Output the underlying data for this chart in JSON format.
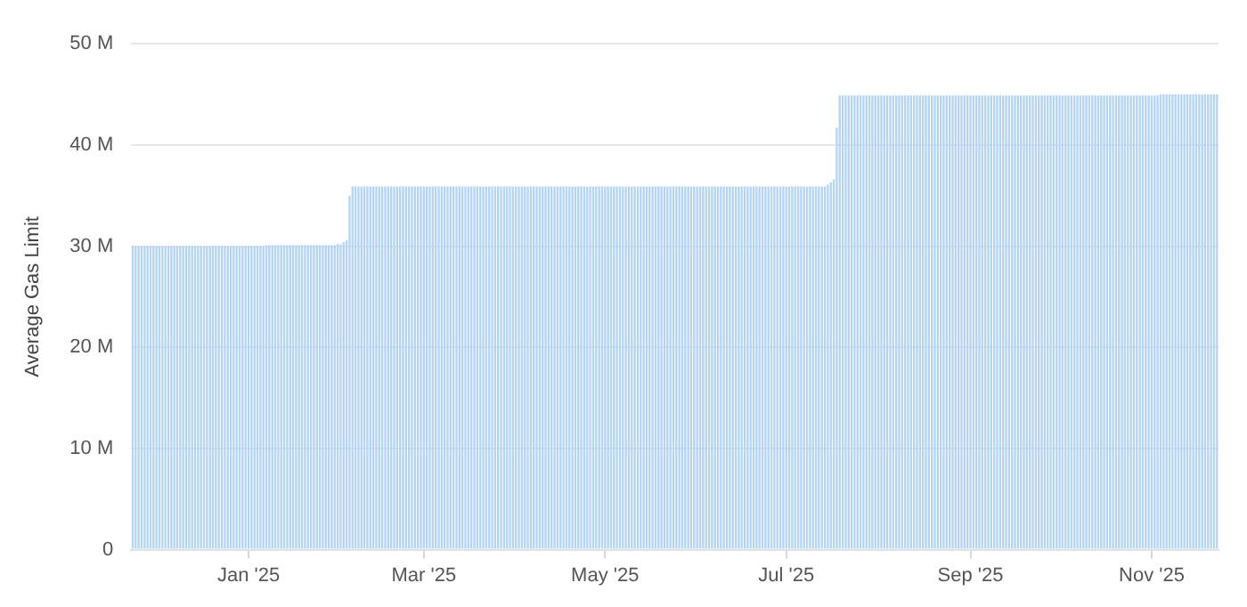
{
  "chart_data": {
    "type": "bar",
    "ylabel": "Average Gas Limit",
    "color": "#b3d4f5",
    "grid": "y",
    "legend": false,
    "ylim": [
      0,
      50
    ],
    "yticks": [
      {
        "value": 0,
        "label": "0"
      },
      {
        "value": 10,
        "label": "10 M"
      },
      {
        "value": 20,
        "label": "20 M"
      },
      {
        "value": 30,
        "label": "30 M"
      },
      {
        "value": 40,
        "label": "40 M"
      },
      {
        "value": 50,
        "label": "50 M"
      }
    ],
    "categories": [
      null,
      null,
      null,
      null,
      null,
      null,
      null,
      null,
      null,
      null,
      null,
      null,
      null,
      null,
      null,
      null,
      null,
      null,
      null,
      null,
      null,
      null,
      null,
      null,
      null,
      null,
      null,
      null,
      null,
      null,
      null,
      null,
      null,
      null,
      null,
      null,
      null,
      null,
      null,
      "Jan '25",
      null,
      null,
      null,
      null,
      null,
      null,
      null,
      null,
      null,
      null,
      null,
      null,
      null,
      null,
      null,
      null,
      null,
      null,
      null,
      null,
      null,
      null,
      null,
      null,
      null,
      null,
      null,
      null,
      null,
      null,
      null,
      null,
      null,
      null,
      null,
      null,
      null,
      null,
      null,
      null,
      null,
      null,
      null,
      null,
      null,
      null,
      null,
      null,
      null,
      null,
      null,
      null,
      null,
      null,
      null,
      null,
      null,
      null,
      "Mar '25",
      null,
      null,
      null,
      null,
      null,
      null,
      null,
      null,
      null,
      null,
      null,
      null,
      null,
      null,
      null,
      null,
      null,
      null,
      null,
      null,
      null,
      null,
      null,
      null,
      null,
      null,
      null,
      null,
      null,
      null,
      null,
      null,
      null,
      null,
      null,
      null,
      null,
      null,
      null,
      null,
      null,
      null,
      null,
      null,
      null,
      null,
      null,
      null,
      null,
      null,
      null,
      null,
      null,
      null,
      null,
      null,
      null,
      null,
      null,
      null,
      "May '25",
      null,
      null,
      null,
      null,
      null,
      null,
      null,
      null,
      null,
      null,
      null,
      null,
      null,
      null,
      null,
      null,
      null,
      null,
      null,
      null,
      null,
      null,
      null,
      null,
      null,
      null,
      null,
      null,
      null,
      null,
      null,
      null,
      null,
      null,
      null,
      null,
      null,
      null,
      null,
      null,
      null,
      null,
      null,
      null,
      null,
      null,
      null,
      null,
      null,
      null,
      null,
      null,
      null,
      null,
      null,
      null,
      null,
      null,
      null,
      null,
      "Jul '25",
      null,
      null,
      null,
      null,
      null,
      null,
      null,
      null,
      null,
      null,
      null,
      null,
      null,
      null,
      null,
      null,
      null,
      null,
      null,
      null,
      null,
      null,
      null,
      null,
      null,
      null,
      null,
      null,
      null,
      null,
      null,
      null,
      null,
      null,
      null,
      null,
      null,
      null,
      null,
      null,
      null,
      null,
      null,
      null,
      null,
      null,
      null,
      null,
      null,
      null,
      null,
      null,
      null,
      null,
      null,
      null,
      null,
      null,
      null,
      null,
      null,
      "Sep '25",
      null,
      null,
      null,
      null,
      null,
      null,
      null,
      null,
      null,
      null,
      null,
      null,
      null,
      null,
      null,
      null,
      null,
      null,
      null,
      null,
      null,
      null,
      null,
      null,
      null,
      null,
      null,
      null,
      null,
      null,
      null,
      null,
      null,
      null,
      null,
      null,
      null,
      null,
      null,
      null,
      null,
      null,
      null,
      null,
      null,
      null,
      null,
      null,
      null,
      null,
      null,
      null,
      null,
      null,
      null,
      null,
      null,
      null,
      null,
      null,
      "Nov '25",
      null,
      null,
      null,
      null,
      null,
      null,
      null,
      null,
      null,
      null,
      null,
      null,
      null,
      null,
      null,
      null,
      null,
      null,
      null,
      null,
      null,
      null
    ],
    "values": [
      30.0,
      30.0,
      30.0,
      30.0,
      30.0,
      30.0,
      30.0,
      30.0,
      30.0,
      30.0,
      30.0,
      30.0,
      30.0,
      30.0,
      30.0,
      30.0,
      30.0,
      30.0,
      30.0,
      30.0,
      30.0,
      30.0,
      30.0,
      30.0,
      30.0,
      30.0,
      30.0,
      30.0,
      30.0,
      30.0,
      30.0,
      30.0,
      30.0,
      30.0,
      30.0,
      30.0,
      30.0,
      30.0,
      30.0,
      30.0,
      30.0,
      30.0,
      30.0,
      30.0,
      30.0,
      30.1,
      30.1,
      30.1,
      30.1,
      30.1,
      30.1,
      30.1,
      30.1,
      30.1,
      30.1,
      30.1,
      30.1,
      30.1,
      30.1,
      30.1,
      30.1,
      30.1,
      30.1,
      30.1,
      30.1,
      30.1,
      30.1,
      30.1,
      30.1,
      30.2,
      30.2,
      30.4,
      30.6,
      35.0,
      35.9,
      35.9,
      35.9,
      35.9,
      35.9,
      35.9,
      35.9,
      35.9,
      35.9,
      35.9,
      35.9,
      35.9,
      35.9,
      35.9,
      35.9,
      35.9,
      35.9,
      35.9,
      35.9,
      35.9,
      35.9,
      35.9,
      35.9,
      35.9,
      35.9,
      35.9,
      35.9,
      35.9,
      35.9,
      35.9,
      35.9,
      35.9,
      35.9,
      35.9,
      35.9,
      35.9,
      35.9,
      35.9,
      35.9,
      35.9,
      35.9,
      35.9,
      35.9,
      35.9,
      35.9,
      35.9,
      35.9,
      35.9,
      35.9,
      35.9,
      35.9,
      35.9,
      35.9,
      35.9,
      35.9,
      35.9,
      35.9,
      35.9,
      35.9,
      35.9,
      35.9,
      35.9,
      35.9,
      35.9,
      35.9,
      35.9,
      35.9,
      35.9,
      35.9,
      35.9,
      35.9,
      35.9,
      35.9,
      35.9,
      35.9,
      35.9,
      35.9,
      35.9,
      35.9,
      35.9,
      35.9,
      35.9,
      35.9,
      35.9,
      35.9,
      35.9,
      35.9,
      35.9,
      35.9,
      35.9,
      35.9,
      35.9,
      35.9,
      35.9,
      35.9,
      35.9,
      35.9,
      35.9,
      35.9,
      35.9,
      35.9,
      35.9,
      35.9,
      35.9,
      35.9,
      35.9,
      35.9,
      35.9,
      35.9,
      35.9,
      35.9,
      35.9,
      35.9,
      35.9,
      35.9,
      35.9,
      35.9,
      35.9,
      35.9,
      35.9,
      35.9,
      35.9,
      35.9,
      35.9,
      35.9,
      35.9,
      35.9,
      35.9,
      35.9,
      35.9,
      35.9,
      35.9,
      35.9,
      35.9,
      35.9,
      35.9,
      35.9,
      35.9,
      35.9,
      35.9,
      35.9,
      35.9,
      35.9,
      35.9,
      35.9,
      35.9,
      35.9,
      35.9,
      35.9,
      35.9,
      35.9,
      35.9,
      35.9,
      35.9,
      35.9,
      35.9,
      35.9,
      35.9,
      35.9,
      35.9,
      36.1,
      36.3,
      36.6,
      41.7,
      44.9,
      44.9,
      44.9,
      44.9,
      44.9,
      44.9,
      44.9,
      44.9,
      44.9,
      44.9,
      44.9,
      44.9,
      44.9,
      44.9,
      44.9,
      44.9,
      44.9,
      44.9,
      44.9,
      44.9,
      44.9,
      44.9,
      44.9,
      44.9,
      44.9,
      44.9,
      44.9,
      44.9,
      44.9,
      44.9,
      44.9,
      44.9,
      44.9,
      44.9,
      44.9,
      44.9,
      44.9,
      44.9,
      44.9,
      44.9,
      44.9,
      44.9,
      44.9,
      44.9,
      44.9,
      44.9,
      44.9,
      44.9,
      44.9,
      44.9,
      44.9,
      44.9,
      44.9,
      44.9,
      44.9,
      44.9,
      44.9,
      44.9,
      44.9,
      44.9,
      44.9,
      44.9,
      44.9,
      44.9,
      44.9,
      44.9,
      44.9,
      44.9,
      44.9,
      44.9,
      44.9,
      44.9,
      44.9,
      44.9,
      44.9,
      44.9,
      44.9,
      44.9,
      44.9,
      44.9,
      44.9,
      44.9,
      44.9,
      44.9,
      44.9,
      44.9,
      44.9,
      44.9,
      44.9,
      44.9,
      44.9,
      44.9,
      44.9,
      44.9,
      44.9,
      44.9,
      44.9,
      44.9,
      44.9,
      44.9,
      44.9,
      44.9,
      44.9,
      44.9,
      44.9,
      44.9,
      44.9,
      44.9,
      45.0,
      45.0,
      45.0,
      45.0,
      45.0,
      45.0,
      45.0,
      45.0,
      45.0,
      45.0,
      45.0,
      45.0,
      45.0,
      45.0,
      45.0,
      45.0,
      45.0,
      45.0,
      45.0,
      45.0
    ]
  }
}
